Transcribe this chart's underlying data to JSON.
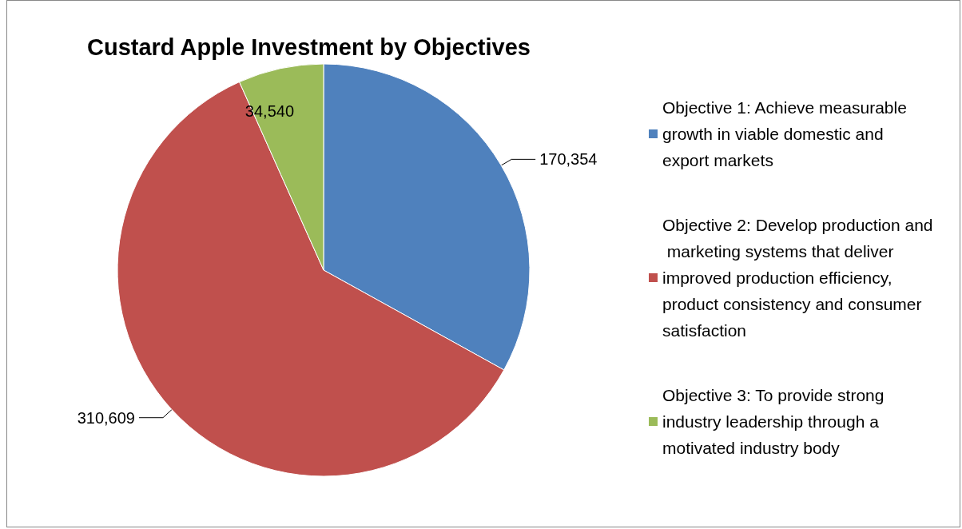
{
  "chart_data": {
    "type": "pie",
    "title": "Custard Apple Investment by Objectives",
    "categories": [
      "Objective 1: Achieve measurable growth in viable domestic and export markets",
      "Objective 2: Develop production and marketing systems that deliver improved production efficiency, product consistency and consumer satisfaction",
      "Objective 3: To provide strong industry leadership through a motivated industry body"
    ],
    "values": [
      170354,
      310609,
      34540
    ],
    "colors": [
      "#4f81bd",
      "#c0504d",
      "#9bbb59"
    ],
    "value_labels": [
      "170,354",
      "310,609",
      "34,540"
    ],
    "legend": "right"
  }
}
